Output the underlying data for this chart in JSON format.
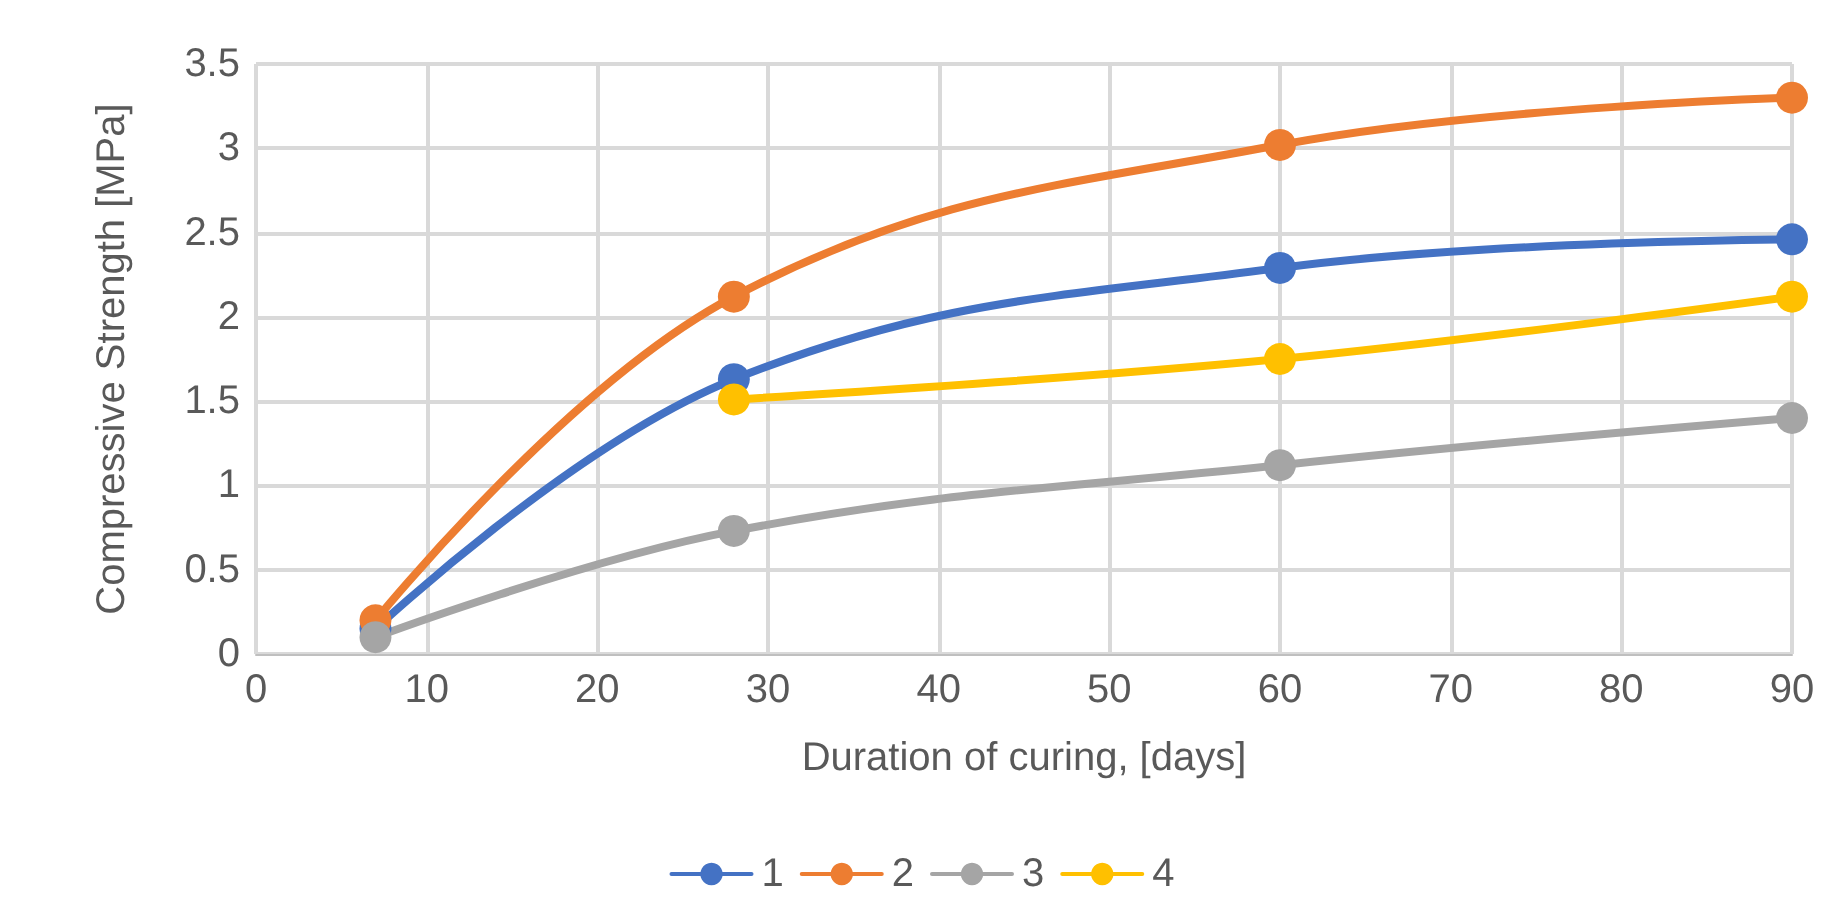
{
  "chart_data": {
    "type": "line",
    "xlabel": "Duration of curing, [days]",
    "ylabel": "Compressive Strength [MPa]",
    "xlim": [
      0,
      90
    ],
    "xticks": [
      0,
      10,
      20,
      30,
      40,
      50,
      60,
      70,
      80,
      90
    ],
    "ylim": [
      0,
      3.5
    ],
    "yticks": [
      0,
      0.5,
      1,
      1.5,
      2,
      2.5,
      3,
      3.5
    ],
    "grid": true,
    "legend": "bottom",
    "marker": "circle",
    "line_style": "solid",
    "series": [
      {
        "name": "1",
        "color": "#4472c4",
        "x": [
          7,
          28,
          60,
          90
        ],
        "values": [
          0.15,
          1.63,
          2.29,
          2.46
        ]
      },
      {
        "name": "2",
        "color": "#ed7d31",
        "x": [
          7,
          28,
          60,
          90
        ],
        "values": [
          0.2,
          2.12,
          3.02,
          3.3
        ]
      },
      {
        "name": "3",
        "color": "#a5a5a5",
        "x": [
          7,
          28,
          60,
          90
        ],
        "values": [
          0.1,
          0.73,
          1.12,
          1.4
        ]
      },
      {
        "name": "4",
        "color": "#ffc000",
        "x": [
          28,
          60,
          90
        ],
        "values": [
          1.51,
          1.75,
          2.12
        ]
      }
    ]
  }
}
